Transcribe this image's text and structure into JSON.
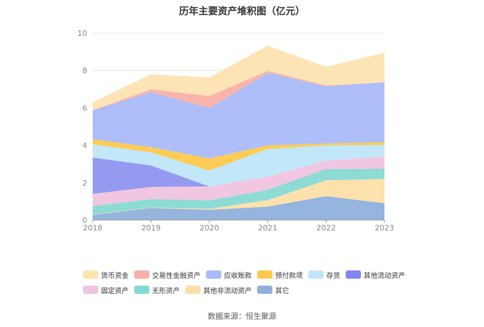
{
  "chart_data": {
    "type": "area",
    "stacked": true,
    "title": "历年主要资产堆积图（亿元）",
    "xlabel": "",
    "ylabel": "",
    "ylim": [
      0,
      10
    ],
    "yticks": [
      0,
      2,
      4,
      6,
      8,
      10
    ],
    "categories": [
      "2018",
      "2019",
      "2020",
      "2021",
      "2022",
      "2023"
    ],
    "series": [
      {
        "name": "其它",
        "color": "#8fb0dc",
        "values": [
          0.28,
          0.65,
          0.55,
          0.72,
          1.28,
          0.9
        ]
      },
      {
        "name": "其他非流动资产",
        "color": "#fcdfa8",
        "values": [
          0.02,
          0.02,
          0.05,
          0.35,
          0.85,
          1.3
        ]
      },
      {
        "name": "无形资产",
        "color": "#86d9d3",
        "values": [
          0.45,
          0.45,
          0.45,
          0.55,
          0.6,
          0.55
        ]
      },
      {
        "name": "固定资产",
        "color": "#efc3df",
        "values": [
          0.65,
          0.65,
          0.75,
          0.7,
          0.45,
          0.65
        ]
      },
      {
        "name": "其他流动资产",
        "color": "#8f95ef",
        "values": [
          1.95,
          1.15,
          0.0,
          0.0,
          0.0,
          0.0
        ]
      },
      {
        "name": "存货",
        "color": "#bfe6f8",
        "values": [
          0.7,
          0.7,
          0.85,
          1.48,
          0.82,
          0.62
        ]
      },
      {
        "name": "预付款项",
        "color": "#fcc94e",
        "values": [
          0.28,
          0.28,
          0.65,
          0.2,
          0.1,
          0.15
        ]
      },
      {
        "name": "应收账款",
        "color": "#a9bbf8",
        "values": [
          1.55,
          2.95,
          2.68,
          3.88,
          3.05,
          3.2
        ]
      },
      {
        "name": "交易性金融资产",
        "color": "#f9b0a8",
        "values": [
          0.0,
          0.15,
          0.65,
          0.1,
          0.05,
          0.0
        ]
      },
      {
        "name": "货币资金",
        "color": "#fde3b0",
        "values": [
          0.42,
          0.8,
          1.0,
          1.35,
          1.0,
          1.58
        ]
      }
    ],
    "legend_position": "bottom",
    "grid": true
  },
  "legend": {
    "rows": [
      [
        {
          "label": "货币资金",
          "color": "#fde3b0"
        },
        {
          "label": "交易性金融资产",
          "color": "#f9b0a8"
        },
        {
          "label": "应收账款",
          "color": "#a9bbf8"
        },
        {
          "label": "预付款项",
          "color": "#fcc94e"
        },
        {
          "label": "存货",
          "color": "#bfe6f8"
        },
        {
          "label": "其他流动资产",
          "color": "#8386f0"
        }
      ],
      [
        {
          "label": "固定资产",
          "color": "#efc3df"
        },
        {
          "label": "无形资产",
          "color": "#86d9d3"
        },
        {
          "label": "其他非流动资产",
          "color": "#fcdfa8"
        },
        {
          "label": "其它",
          "color": "#8fb0dc"
        }
      ]
    ]
  },
  "source": "数据来源：恒生聚源"
}
